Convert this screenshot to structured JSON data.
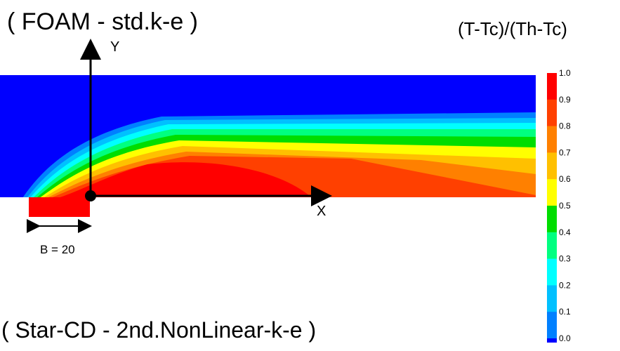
{
  "titles": {
    "top": "( FOAM  - std.k-e )",
    "bottom": "( Star-CD - 2nd.NonLinear-k-e )",
    "legend": "(T-Tc)/(Th-Tc)"
  },
  "axes": {
    "x": "X",
    "y": "Y"
  },
  "dimension_label": "B = 20",
  "colorbar": {
    "ticks": [
      "1.0",
      "0.9",
      "0.8",
      "0.7",
      "0.6",
      "0.5",
      "0.4",
      "0.3",
      "0.2",
      "0.1",
      "0.0"
    ],
    "colors": [
      "#ff0000",
      "#ff4000",
      "#ff8000",
      "#ffc000",
      "#ffff00",
      "#00dd00",
      "#00ff80",
      "#00ffff",
      "#00c0ff",
      "#0080ff",
      "#0000ff"
    ]
  }
}
